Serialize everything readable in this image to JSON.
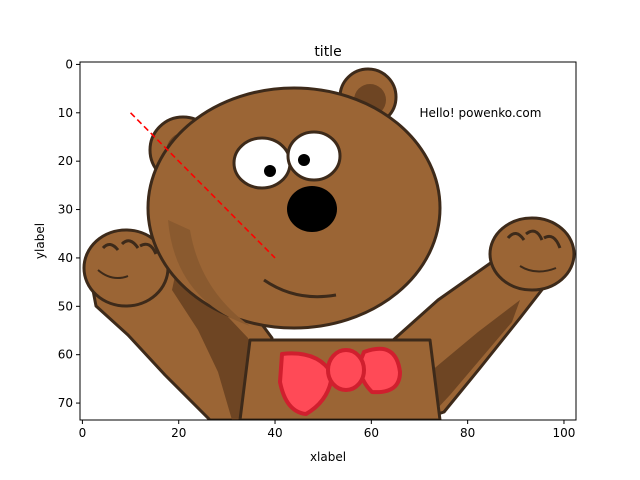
{
  "chart_data": {
    "type": "image",
    "title": "title",
    "xlabel": "xlabel",
    "ylabel": "ylabel",
    "xlim": [
      -0.5,
      102.5
    ],
    "ylim": [
      73.5,
      -0.5
    ],
    "x_ticks": [
      0,
      20,
      40,
      60,
      80,
      100
    ],
    "y_ticks": [
      0,
      10,
      20,
      30,
      40,
      50,
      60,
      70
    ],
    "image_content": "cartoon-bear-with-red-bowtie",
    "annotation": {
      "text": "Hello! powenko.com",
      "x": 70,
      "y": 10
    },
    "lines": [
      {
        "x": [
          10,
          40
        ],
        "y": [
          10,
          40
        ],
        "style": "dashed",
        "color": "#ff0000"
      }
    ]
  },
  "colors": {
    "fur": "#9b6535",
    "fur_dark": "#6e4523",
    "fur_shadow": "#5a3a1e",
    "outline": "#3d2a1a",
    "ear_inner": "#a8703d",
    "bowtie": "#ff4a57",
    "bowtie_dark": "#d01f2e",
    "nose": "#000000",
    "eye_white": "#ffffff",
    "line": "#ff0000"
  }
}
